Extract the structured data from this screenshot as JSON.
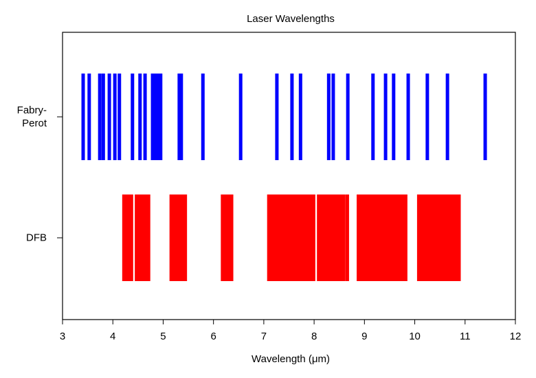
{
  "chart_data": {
    "type": "eventplot",
    "title": "Laser Wavelengths",
    "x_label": "Wavelength (μm)",
    "xlim": [
      3,
      12
    ],
    "xticks": [
      3,
      4,
      5,
      6,
      7,
      8,
      9,
      10,
      11,
      12
    ],
    "series": [
      {
        "name": "Fabry-\nPerot",
        "color": "#0000ff",
        "values": [
          3.41,
          3.53,
          3.74,
          3.81,
          3.93,
          4.04,
          4.13,
          4.39,
          4.54,
          4.64,
          4.79,
          4.84,
          4.9,
          4.95,
          5.32,
          5.36,
          5.79,
          6.54,
          7.26,
          7.56,
          7.73,
          8.29,
          8.38,
          8.67,
          9.17,
          9.42,
          9.58,
          9.87,
          10.25,
          10.65,
          11.4
        ]
      },
      {
        "name": "DFB",
        "color": "#ff0000",
        "values": [
          4.22,
          4.27,
          4.32,
          4.37,
          4.47,
          4.52,
          4.57,
          4.62,
          4.67,
          4.71,
          5.16,
          5.21,
          5.26,
          5.31,
          5.36,
          5.41,
          5.44,
          6.18,
          6.22,
          6.27,
          6.31,
          6.36,
          7.1,
          7.15,
          7.2,
          7.25,
          7.3,
          7.35,
          7.4,
          7.45,
          7.5,
          7.55,
          7.6,
          7.65,
          7.7,
          7.75,
          7.8,
          7.85,
          7.9,
          7.95,
          7.99,
          8.09,
          8.14,
          8.19,
          8.24,
          8.29,
          8.34,
          8.39,
          8.44,
          8.49,
          8.54,
          8.59,
          8.66,
          8.88,
          8.93,
          8.98,
          9.03,
          9.08,
          9.13,
          9.18,
          9.23,
          9.28,
          9.33,
          9.38,
          9.43,
          9.48,
          9.53,
          9.58,
          9.63,
          9.68,
          9.73,
          9.78,
          9.82,
          10.08,
          10.13,
          10.18,
          10.23,
          10.28,
          10.33,
          10.38,
          10.43,
          10.48,
          10.53,
          10.58,
          10.63,
          10.68,
          10.73,
          10.78,
          10.83,
          10.88
        ]
      }
    ]
  }
}
